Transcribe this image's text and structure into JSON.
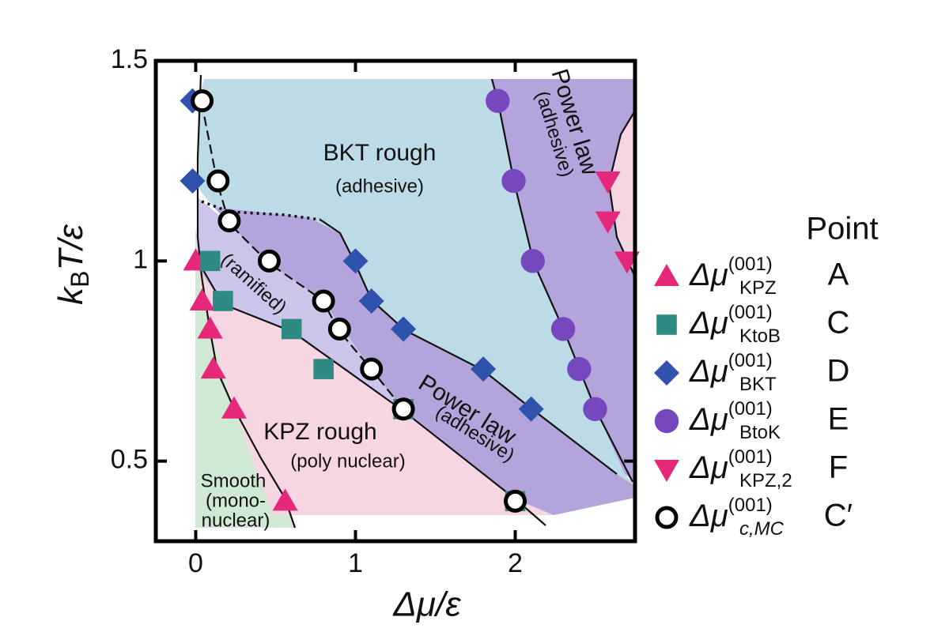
{
  "chart_data": {
    "type": "scatter",
    "x_label": "Δμ/ε",
    "y_label": {
      "main": "k",
      "subscript": "B",
      "rest": "T/ε"
    },
    "xlim": [
      -0.25,
      2.75
    ],
    "ylim": [
      0.3,
      1.5
    ],
    "xticks": [
      0,
      1,
      2
    ],
    "yticks": [
      0.5,
      1,
      1.5
    ],
    "legend_title": "Point",
    "annotations": [
      "BKT rough",
      "(adhesive)",
      "Power law",
      "(adhesive)",
      "(ramified)",
      "Power law",
      "(adhesive)",
      "KPZ rough",
      "(poly nuclear)",
      "Smooth",
      "(mono-",
      "nuclear)"
    ],
    "series": [
      {
        "name": "Δμ",
        "name_superscript": "(001)",
        "name_subscript": "KPZ",
        "point_label": "A",
        "marker": "triangle-up",
        "color": "#e6287a",
        "x": [
          0,
          0.04,
          0.09,
          0.11,
          0.24,
          0.56
        ],
        "values": [
          1.0,
          0.9,
          0.83,
          0.73,
          0.63,
          0.4
        ]
      },
      {
        "name": "Δμ",
        "name_superscript": "(001)",
        "name_subscript": "KtoB",
        "point_label": "C",
        "marker": "square",
        "color": "#2e8a82",
        "x": [
          0.09,
          0.17,
          0.6,
          0.8,
          1.3,
          2.0
        ],
        "values": [
          1.0,
          0.9,
          0.83,
          0.73,
          0.63,
          0.4
        ]
      },
      {
        "name": "Δμ",
        "name_superscript": "(001)",
        "name_subscript": "BKT",
        "point_label": "D",
        "marker": "diamond",
        "color": "#2f52ad",
        "x": [
          -0.02,
          -0.02,
          1.0,
          1.1,
          1.3,
          1.8,
          2.1
        ],
        "values": [
          1.4,
          1.2,
          1.0,
          0.9,
          0.83,
          0.73,
          0.63
        ]
      },
      {
        "name": "Δμ",
        "name_superscript": "(001)",
        "name_subscript": "BtoK",
        "point_label": "E",
        "marker": "circle",
        "color": "#7548bd",
        "x": [
          1.89,
          1.99,
          2.11,
          2.3,
          2.4,
          2.5
        ],
        "values": [
          1.4,
          1.2,
          1.0,
          0.83,
          0.73,
          0.63
        ]
      },
      {
        "name": "Δμ",
        "name_superscript": "(001)",
        "name_subscript": "KPZ,2",
        "point_label": "F",
        "marker": "triangle-down",
        "color": "#e6287a",
        "x": [
          2.58,
          2.58,
          2.7
        ],
        "values": [
          1.2,
          1.1,
          1.0
        ]
      },
      {
        "name": "Δμ",
        "name_superscript": "(001)",
        "name_subscript": "c,MC",
        "point_label": "C′",
        "marker": "open-circle",
        "color": "#000000",
        "x": [
          0.04,
          0.14,
          0.21,
          0.46,
          0.8,
          0.9,
          1.1,
          1.3,
          2.0
        ],
        "values": [
          1.4,
          1.2,
          1.1,
          1.0,
          0.9,
          0.83,
          0.73,
          0.63,
          0.4
        ]
      }
    ]
  }
}
